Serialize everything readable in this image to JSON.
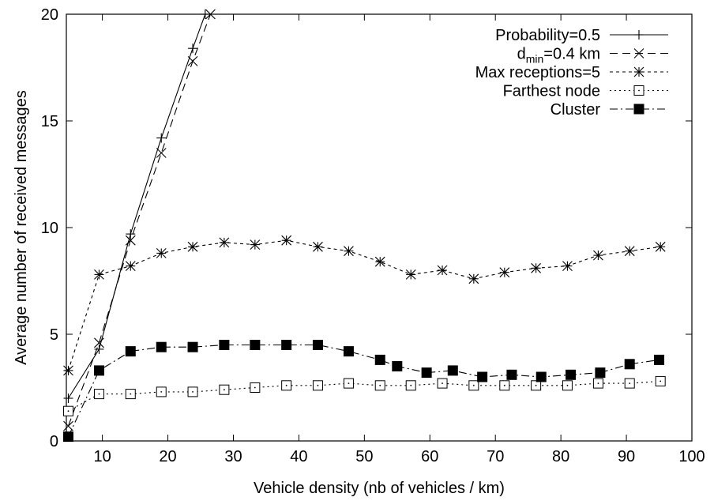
{
  "chart_data": {
    "type": "line",
    "title": "",
    "xlabel": "Vehicle density (nb of vehicles / km)",
    "ylabel": "Average number of received messages",
    "xlim": [
      4.5,
      100
    ],
    "ylim": [
      0,
      20
    ],
    "xticks": [
      10,
      20,
      30,
      40,
      50,
      60,
      70,
      80,
      90,
      100
    ],
    "yticks": [
      0,
      5,
      10,
      15,
      20
    ],
    "grid": false,
    "legend_position": "top-right",
    "series": [
      {
        "name": "Probability=0.5",
        "name_main": "Probability=0.5",
        "name_sub": "",
        "name_rest": "",
        "marker": "plus",
        "dash": "",
        "x": [
          4.8,
          9.5,
          14.3,
          19.0,
          23.8,
          25.7
        ],
        "y": [
          2.0,
          4.3,
          9.7,
          14.2,
          18.4,
          20.0
        ]
      },
      {
        "name": "dmin=0.4 km",
        "name_main": "d",
        "name_sub": "min",
        "name_rest": "=0.4 km",
        "marker": "cross",
        "dash": "10,6",
        "x": [
          4.8,
          9.5,
          14.3,
          19.0,
          23.8,
          26.5
        ],
        "y": [
          0.7,
          4.6,
          9.4,
          13.5,
          17.8,
          20.0
        ]
      },
      {
        "name": "Max receptions=5",
        "name_main": "Max receptions=5",
        "name_sub": "",
        "name_rest": "",
        "marker": "star",
        "dash": "4,4",
        "x": [
          4.8,
          9.5,
          14.3,
          19.0,
          23.8,
          28.6,
          33.3,
          38.1,
          42.9,
          47.6,
          52.4,
          57.1,
          61.9,
          66.7,
          71.4,
          76.2,
          81.0,
          85.7,
          90.5,
          95.2
        ],
        "y": [
          3.3,
          7.8,
          8.2,
          8.8,
          9.1,
          9.3,
          9.2,
          9.4,
          9.1,
          8.9,
          8.4,
          7.8,
          8.0,
          7.6,
          7.9,
          8.1,
          8.2,
          8.7,
          8.9,
          9.1
        ]
      },
      {
        "name": "Farthest node",
        "name_main": "Farthest node",
        "name_sub": "",
        "name_rest": "",
        "marker": "square-open",
        "dash": "2,4",
        "x": [
          4.8,
          9.5,
          14.3,
          19.0,
          23.8,
          28.6,
          33.3,
          38.1,
          42.9,
          47.6,
          52.4,
          57.1,
          61.9,
          66.7,
          71.4,
          76.2,
          81.0,
          85.7,
          90.5,
          95.2
        ],
        "y": [
          1.4,
          2.2,
          2.2,
          2.3,
          2.3,
          2.4,
          2.5,
          2.6,
          2.6,
          2.7,
          2.6,
          2.6,
          2.7,
          2.6,
          2.6,
          2.6,
          2.6,
          2.7,
          2.7,
          2.8
        ]
      },
      {
        "name": "Cluster",
        "name_main": "Cluster",
        "name_sub": "",
        "name_rest": "",
        "marker": "square-filled",
        "dash": "10,4,2,4",
        "x": [
          4.8,
          9.5,
          14.3,
          19.0,
          23.8,
          28.6,
          33.3,
          38.1,
          42.9,
          47.6,
          52.4,
          55.0,
          59.5,
          63.5,
          68.0,
          72.5,
          77.0,
          81.5,
          86.0,
          90.5,
          95.0
        ],
        "y": [
          0.2,
          3.3,
          4.2,
          4.4,
          4.4,
          4.5,
          4.5,
          4.5,
          4.5,
          4.2,
          3.8,
          3.5,
          3.2,
          3.3,
          3.0,
          3.1,
          3.0,
          3.1,
          3.2,
          3.6,
          3.8
        ]
      }
    ]
  }
}
